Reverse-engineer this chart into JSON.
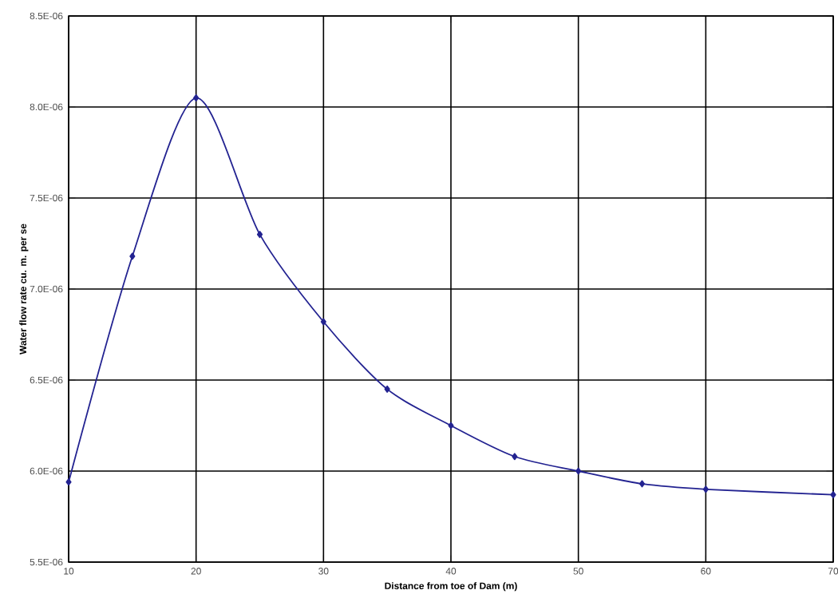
{
  "chart_data": {
    "type": "line",
    "xlabel": "Distance from toe of Dam (m)",
    "ylabel": "Water flow rate cu. m. per se",
    "x": [
      10,
      15,
      20,
      25,
      30,
      35,
      40,
      45,
      50,
      55,
      60,
      70
    ],
    "series": [
      {
        "color": "#232391",
        "values": [
          5.94e-06,
          7.18e-06,
          8.05e-06,
          7.3e-06,
          6.82e-06,
          6.45e-06,
          6.25e-06,
          6.08e-06,
          6e-06,
          5.93e-06,
          5.9e-06,
          5.87e-06
        ]
      }
    ],
    "xlim": [
      10,
      70
    ],
    "xticks": [
      10,
      20,
      30,
      40,
      50,
      60,
      70
    ],
    "ylim": [
      5.5e-06,
      8.5e-06
    ],
    "yticks": [
      {
        "value": 5.5e-06,
        "label": "5.5E-06"
      },
      {
        "value": 6e-06,
        "label": "6.0E-06"
      },
      {
        "value": 6.5e-06,
        "label": "6.5E-06"
      },
      {
        "value": 7e-06,
        "label": "7.0E-06"
      },
      {
        "value": 7.5e-06,
        "label": "7.5E-06"
      },
      {
        "value": 8e-06,
        "label": "8.0E-06"
      },
      {
        "value": 8.5e-06,
        "label": "8.5E-06"
      }
    ],
    "grid": true,
    "marker": "diamond",
    "line_style": "solid"
  }
}
